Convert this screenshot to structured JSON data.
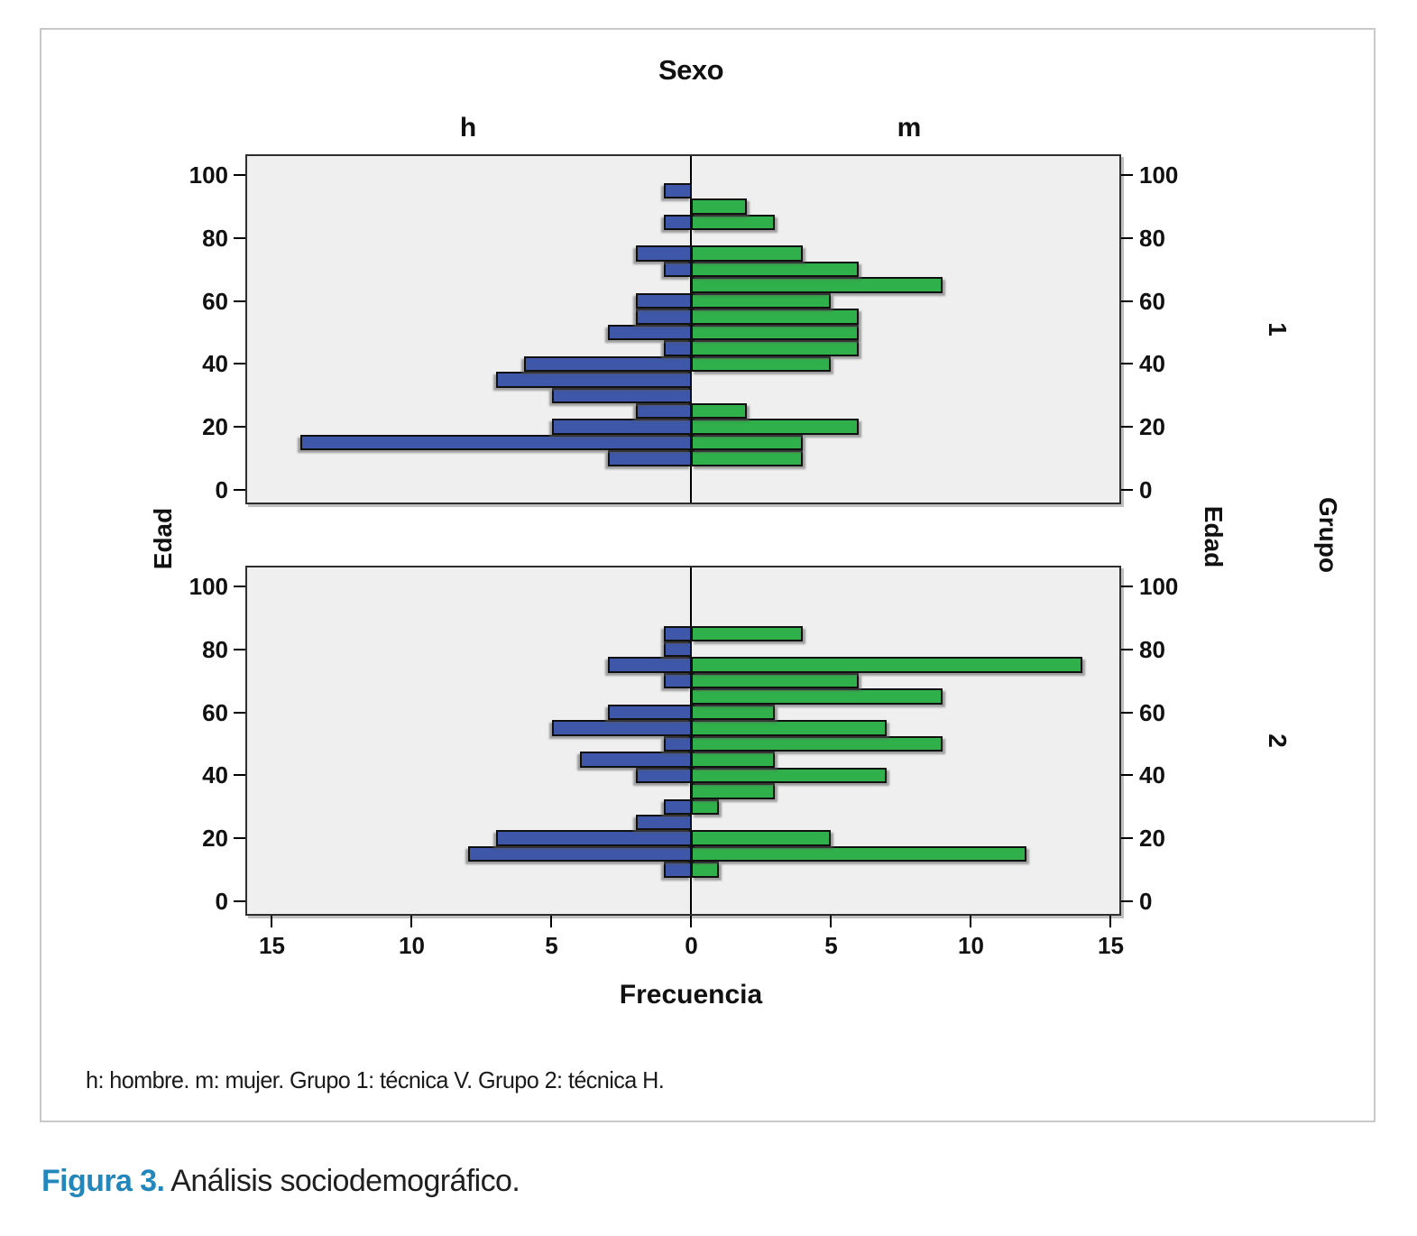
{
  "figure": {
    "title": "Sexo",
    "column_labels": {
      "left": "h",
      "right": "m"
    },
    "x_axis_label": "Frecuencia",
    "y_axis_label_left": "Edad",
    "y_axis_label_right": "Edad",
    "row_axis_label": "Grupo",
    "row_labels": [
      "1",
      "2"
    ],
    "footnote": "h: hombre. m: mujer. Grupo 1: técnica V. Grupo 2: técnica H.",
    "caption_label": "Figura 3.",
    "caption_text": " Análisis sociodemográfico."
  },
  "colors": {
    "male_bar": "#3e57a8",
    "female_bar": "#2fb04a",
    "panel_background": "#efefef",
    "panel_border": "#2e2e2e",
    "caption_accent": "#2387bc",
    "figure_border": "#c9c9c9"
  },
  "chart_data": {
    "type": "bar",
    "subtype": "population-pyramid",
    "title": "Sexo",
    "xlabel": "Frecuencia",
    "ylabel": "Edad",
    "grid": false,
    "legend_position": "none",
    "x_ticks": [
      -15,
      -10,
      -5,
      0,
      5,
      10,
      15
    ],
    "x_range_per_side": [
      0,
      15.5
    ],
    "y_ticks": [
      0,
      20,
      40,
      60,
      80,
      100
    ],
    "ylim": [
      -4,
      106
    ],
    "age_bin_width": 5,
    "ages": [
      10,
      15,
      20,
      25,
      30,
      35,
      40,
      45,
      50,
      55,
      60,
      65,
      70,
      75,
      80,
      85,
      90,
      95
    ],
    "panels": [
      {
        "group": "1",
        "series": [
          {
            "name": "h",
            "values": [
              3,
              14,
              5,
              2,
              5,
              7,
              6,
              1,
              3,
              2,
              2,
              0,
              1,
              2,
              0,
              1,
              0,
              1
            ]
          },
          {
            "name": "m",
            "values": [
              4,
              4,
              6,
              2,
              0,
              0,
              5,
              6,
              6,
              6,
              5,
              9,
              6,
              4,
              0,
              3,
              2,
              0
            ]
          }
        ]
      },
      {
        "group": "2",
        "series": [
          {
            "name": "h",
            "values": [
              1,
              8,
              7,
              2,
              1,
              0,
              2,
              4,
              1,
              5,
              3,
              0,
              1,
              3,
              1,
              1,
              0,
              0
            ]
          },
          {
            "name": "m",
            "values": [
              1,
              12,
              5,
              0,
              1,
              3,
              7,
              3,
              9,
              7,
              3,
              9,
              6,
              14,
              0,
              4,
              0,
              0
            ]
          }
        ]
      }
    ]
  }
}
